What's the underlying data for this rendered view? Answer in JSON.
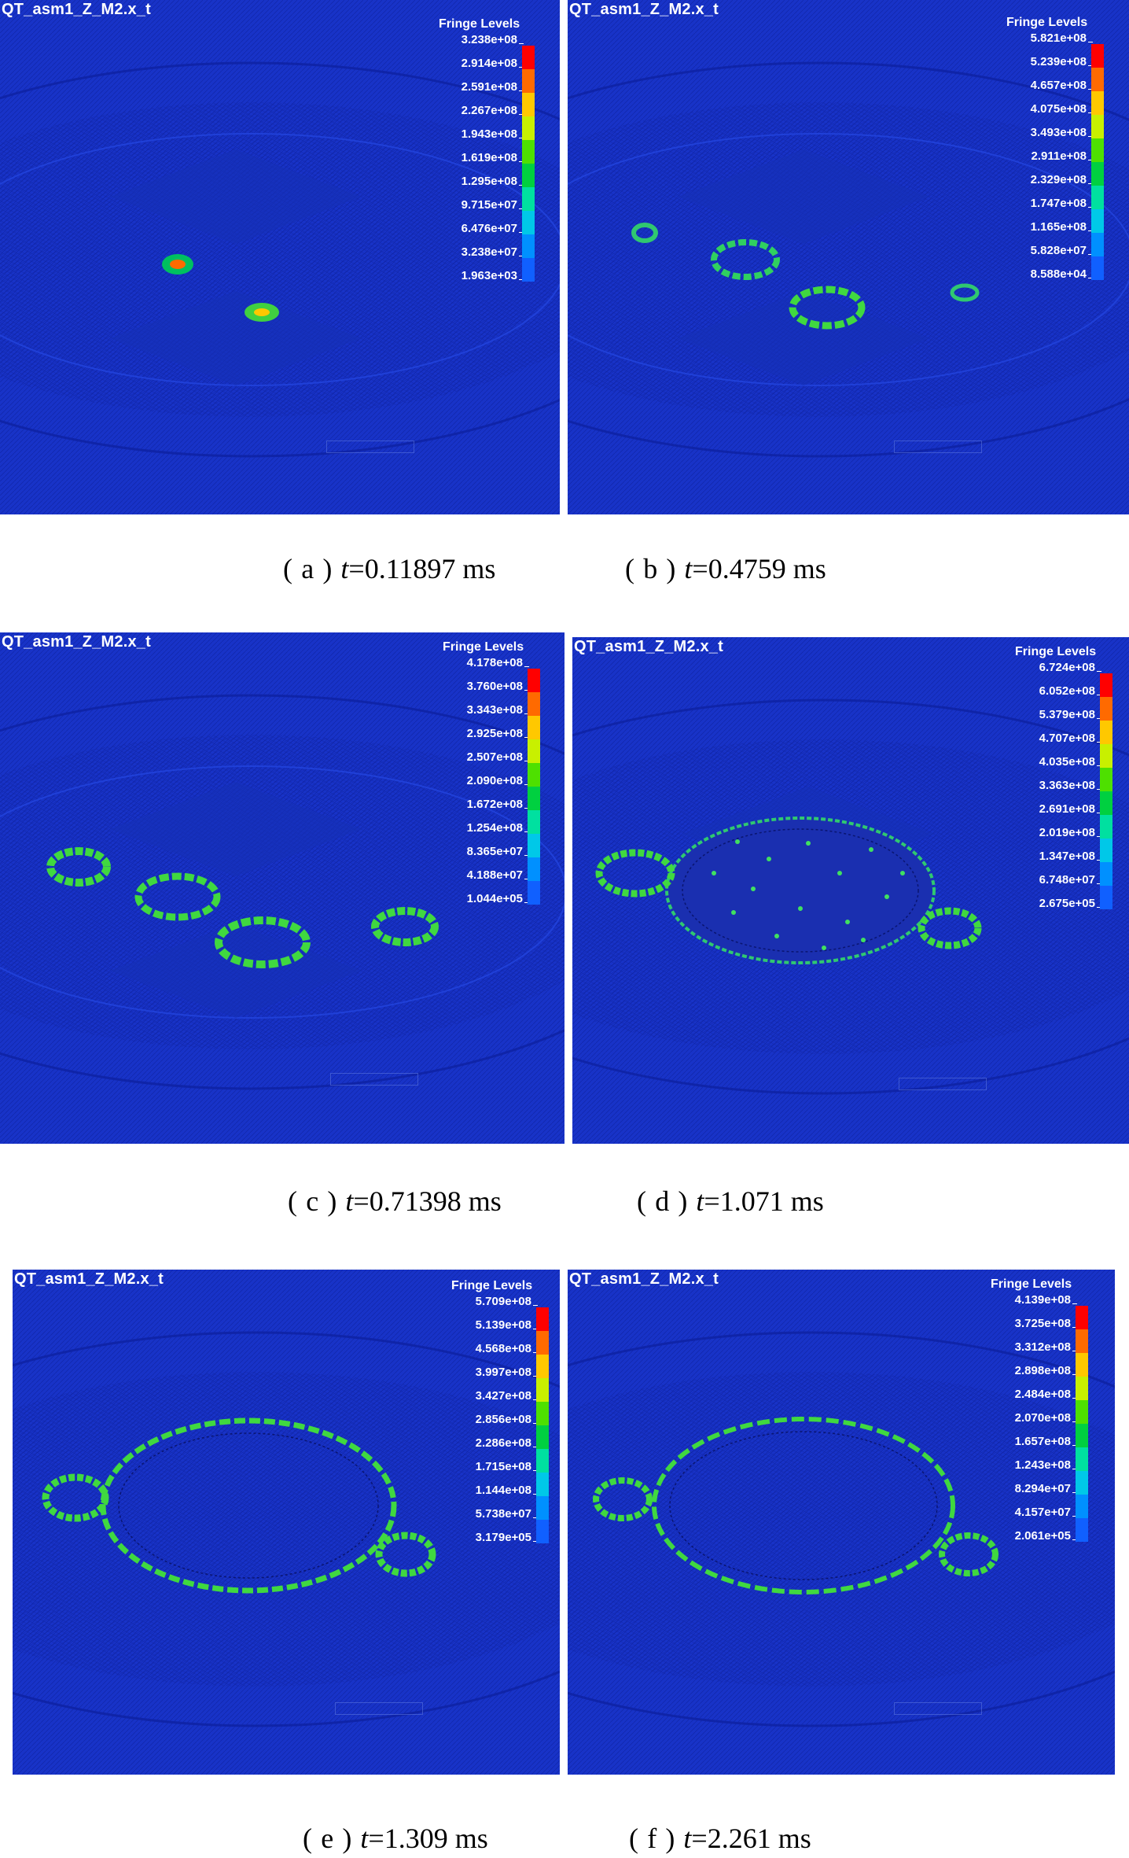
{
  "model_name": "QT_asm1_Z_M2.x_t",
  "legend_title": "Fringe Levels",
  "colorbar": [
    "#ff0000",
    "#ff6a00",
    "#ffc800",
    "#c8f000",
    "#4ee000",
    "#00d040",
    "#00e0a0",
    "#00c8e8",
    "#0090ff",
    "#1060ff",
    "#0020e0"
  ],
  "panels": [
    {
      "letter": "a",
      "time_var": "t",
      "time_value": "=0.11897 ms",
      "levels": [
        "3.238e+08",
        "2.914e+08",
        "2.591e+08",
        "2.267e+08",
        "1.943e+08",
        "1.619e+08",
        "1.295e+08",
        "9.715e+07",
        "6.476e+07",
        "3.238e+07",
        "1.963e+03"
      ]
    },
    {
      "letter": "b",
      "time_var": "t",
      "time_value": "=0.4759 ms",
      "levels": [
        "5.821e+08",
        "5.239e+08",
        "4.657e+08",
        "4.075e+08",
        "3.493e+08",
        "2.911e+08",
        "2.329e+08",
        "1.747e+08",
        "1.165e+08",
        "5.828e+07",
        "8.588e+04"
      ]
    },
    {
      "letter": "c",
      "time_var": "t",
      "time_value": "=0.71398 ms",
      "levels": [
        "4.178e+08",
        "3.760e+08",
        "3.343e+08",
        "2.925e+08",
        "2.507e+08",
        "2.090e+08",
        "1.672e+08",
        "1.254e+08",
        "8.365e+07",
        "4.188e+07",
        "1.044e+05"
      ]
    },
    {
      "letter": "d",
      "time_var": "t",
      "time_value": "=1.071 ms",
      "levels": [
        "6.724e+08",
        "6.052e+08",
        "5.379e+08",
        "4.707e+08",
        "4.035e+08",
        "3.363e+08",
        "2.691e+08",
        "2.019e+08",
        "1.347e+08",
        "6.748e+07",
        "2.675e+05"
      ]
    },
    {
      "letter": "e",
      "time_var": "t",
      "time_value": "=1.309 ms",
      "levels": [
        "5.709e+08",
        "5.139e+08",
        "4.568e+08",
        "3.997e+08",
        "3.427e+08",
        "2.856e+08",
        "2.286e+08",
        "1.715e+08",
        "1.144e+08",
        "5.738e+07",
        "3.179e+05"
      ]
    },
    {
      "letter": "f",
      "time_var": "t",
      "time_value": "=2.261 ms",
      "levels": [
        "4.139e+08",
        "3.725e+08",
        "3.312e+08",
        "2.898e+08",
        "2.484e+08",
        "2.070e+08",
        "1.657e+08",
        "1.243e+08",
        "8.294e+07",
        "4.157e+07",
        "2.061e+05"
      ]
    }
  ]
}
